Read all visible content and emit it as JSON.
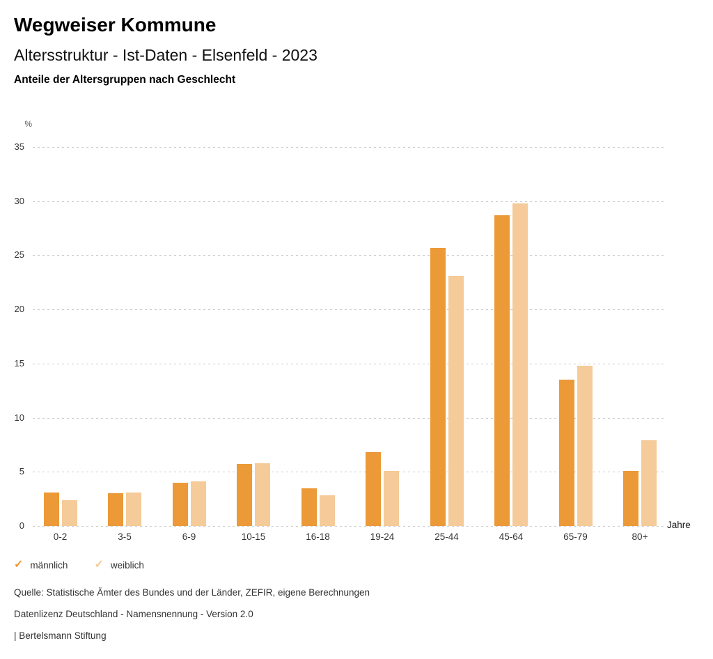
{
  "header": {
    "brand": "Wegweiser Kommune",
    "title": "Altersstruktur - Ist-Daten - Elsenfeld - 2023"
  },
  "chart_data": {
    "type": "bar",
    "title": "Anteile der Altersgruppen nach Geschlecht",
    "xlabel": "Jahre",
    "ylabel": "%",
    "categories": [
      "0-2",
      "3-5",
      "6-9",
      "10-15",
      "16-18",
      "19-24",
      "25-44",
      "45-64",
      "65-79",
      "80+"
    ],
    "series": [
      {
        "name": "männlich",
        "color": "#EC9937",
        "values": [
          3.1,
          3.0,
          4.0,
          5.7,
          3.5,
          6.8,
          25.7,
          28.7,
          13.5,
          5.1
        ]
      },
      {
        "name": "weiblich",
        "color": "#F5CB99",
        "values": [
          2.4,
          3.1,
          4.1,
          5.8,
          2.8,
          5.1,
          23.1,
          29.8,
          14.8,
          7.9
        ]
      }
    ],
    "ylim": [
      0,
      35
    ],
    "yticks": [
      0,
      5,
      10,
      15,
      20,
      25,
      30,
      35
    ],
    "grid": "horizontal-dotted",
    "grid_color": "#c9c9c9",
    "legend_position": "bottom-left",
    "legend_marker": "check"
  },
  "footer": {
    "lines": [
      "Quelle: Statistische Ämter des Bundes und der Länder, ZEFIR, eigene Berechnungen",
      "Datenlizenz Deutschland - Namensnennung - Version 2.0",
      "| Bertelsmann Stiftung"
    ]
  }
}
